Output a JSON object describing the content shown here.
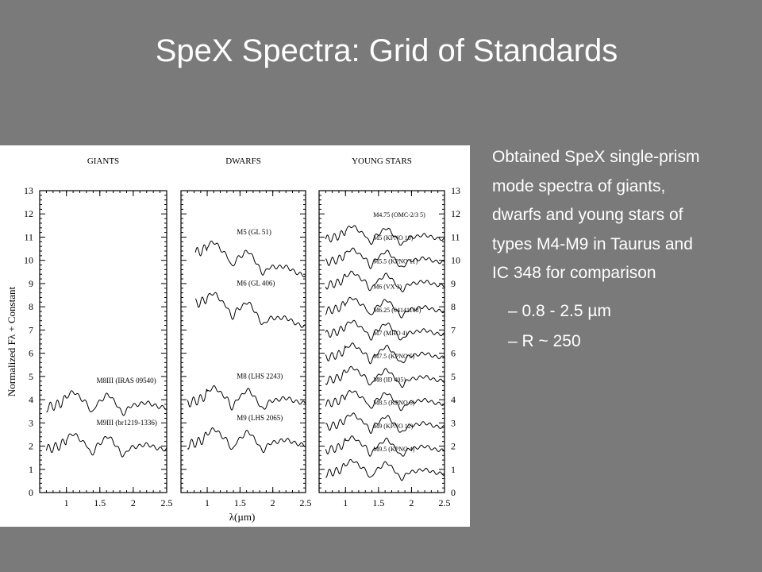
{
  "slide": {
    "title": "SpeX Spectra: Grid of Standards",
    "bullet_main_lines": [
      "Obtained SpeX single-prism",
      "mode spectra of giants,",
      "dwarfs and young stars of",
      "types M4-M9 in Taurus and",
      "IC 348 for comparison"
    ],
    "sub_bullets": [
      "–  0.8 - 2.5 µm",
      "–  R ~ 250"
    ]
  },
  "colors": {
    "background": "#7a7a7a",
    "text": "#ffffff",
    "figure_bg": "#ffffff",
    "ink": "#000000"
  },
  "chart_data": {
    "type": "line",
    "xlabel": "λ(µm)",
    "ylabel": "Normalized Fλ + Constant",
    "xlim": [
      0.6,
      2.5
    ],
    "ylim": [
      0,
      13
    ],
    "xticks": [
      1,
      1.5,
      2,
      2.5
    ],
    "yticks": [
      0,
      1,
      2,
      3,
      4,
      5,
      6,
      7,
      8,
      9,
      10,
      11,
      12,
      13
    ],
    "grid": false,
    "panels": [
      {
        "title": "GIANTS",
        "series": [
          {
            "name": "M8III (IRAS 09540)",
            "offset": 4.0,
            "scale": 1.3
          },
          {
            "name": "M9III (br1219-1336)",
            "offset": 2.2,
            "scale": 1.3
          }
        ]
      },
      {
        "title": "DWARFS",
        "series": [
          {
            "name": "M5  (GL 51)",
            "offset": 10.4,
            "scale": 1.3
          },
          {
            "name": "M6  (GL 406)",
            "offset": 8.2,
            "scale": 1.3
          },
          {
            "name": "M8  (LHS 2243)",
            "offset": 4.2,
            "scale": 1.3
          },
          {
            "name": "M9  (LHS 2065)",
            "offset": 2.4,
            "scale": 1.3
          }
        ]
      },
      {
        "title": "YOUNG STARS",
        "series": [
          {
            "name": "M4.75 (OMC-2/3 5)",
            "offset": 11.2,
            "scale": 1.1
          },
          {
            "name": "M5 (KPNO 10)",
            "offset": 10.2,
            "scale": 1.1
          },
          {
            "name": "M5.5 (KPNO 11)",
            "offset": 9.2,
            "scale": 1.1
          },
          {
            "name": "M6 (VX 3)",
            "offset": 8.1,
            "scale": 1.1
          },
          {
            "name": "M6.25 (04141188)",
            "offset": 7.1,
            "scale": 1.1
          },
          {
            "name": "M7 (MHO 4)",
            "offset": 6.1,
            "scale": 1.1
          },
          {
            "name": "M7.5 (KPNO 5)",
            "offset": 5.1,
            "scale": 1.1
          },
          {
            "name": "M8 (ID 405)",
            "offset": 4.1,
            "scale": 1.1
          },
          {
            "name": "M8.5 (KPNO 6)",
            "offset": 3.1,
            "scale": 1.1
          },
          {
            "name": "M9 (KPNO 12)",
            "offset": 2.1,
            "scale": 1.1
          },
          {
            "name": "M9.5 (KPNO 4)",
            "offset": 1.1,
            "scale": 1.1
          }
        ]
      }
    ]
  }
}
